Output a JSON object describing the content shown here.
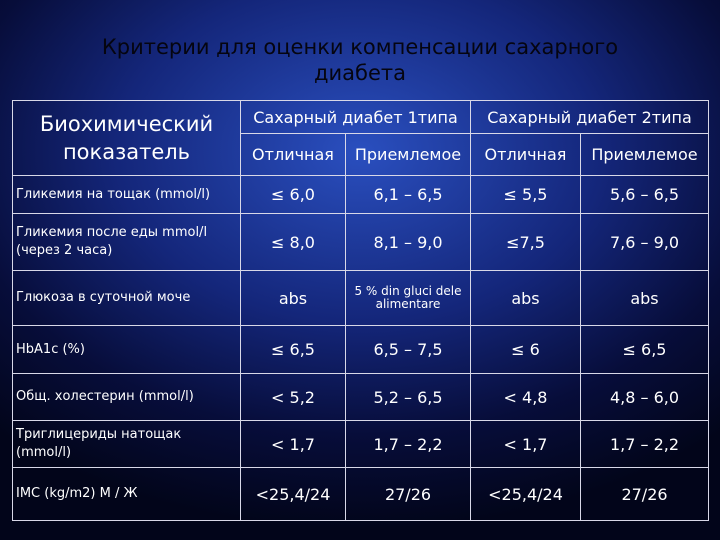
{
  "title": "Критерии для оценки компенсации сахарного диабета",
  "table": {
    "header": {
      "indicator": "Биохимический показатель",
      "groups": [
        "Сахарный диабет 1типа",
        "Сахарный диабет 2типа"
      ],
      "subheaders": [
        "Отличная",
        "Приемлемое",
        "Отличная",
        "Приемлемое"
      ]
    },
    "rows": [
      [
        "Гликемия на тощак (mmol/l)",
        "≤ 6,0",
        "6,1 – 6,5",
        "≤ 5,5",
        "5,6 – 6,5"
      ],
      [
        "Гликемия после еды mmol/l (через 2 часа)",
        "≤ 8,0",
        "8,1 – 9,0",
        "≤7,5",
        "7,6 – 9,0"
      ],
      [
        "Глюкоза в суточной моче",
        "abs",
        "5 % din gluci dele alimentare",
        "abs",
        "abs"
      ],
      [
        "HbA1c (%)",
        "≤ 6,5",
        "6,5 – 7,5",
        "≤ 6",
        "≤ 6,5"
      ],
      [
        "Общ. холестерин (mmol/l)",
        "< 5,2",
        "5,2 – 6,5",
        "< 4,8",
        "4,8 – 6,0"
      ],
      [
        "Триглицериды натощак (mmol/l)",
        "< 1,7",
        "1,7 – 2,2",
        "< 1,7",
        "1,7 – 2,2"
      ],
      [
        "IMC (kg/m2) М / Ж",
        "<25,4/24",
        "27/26",
        "<25,4/24",
        "27/26"
      ]
    ]
  }
}
